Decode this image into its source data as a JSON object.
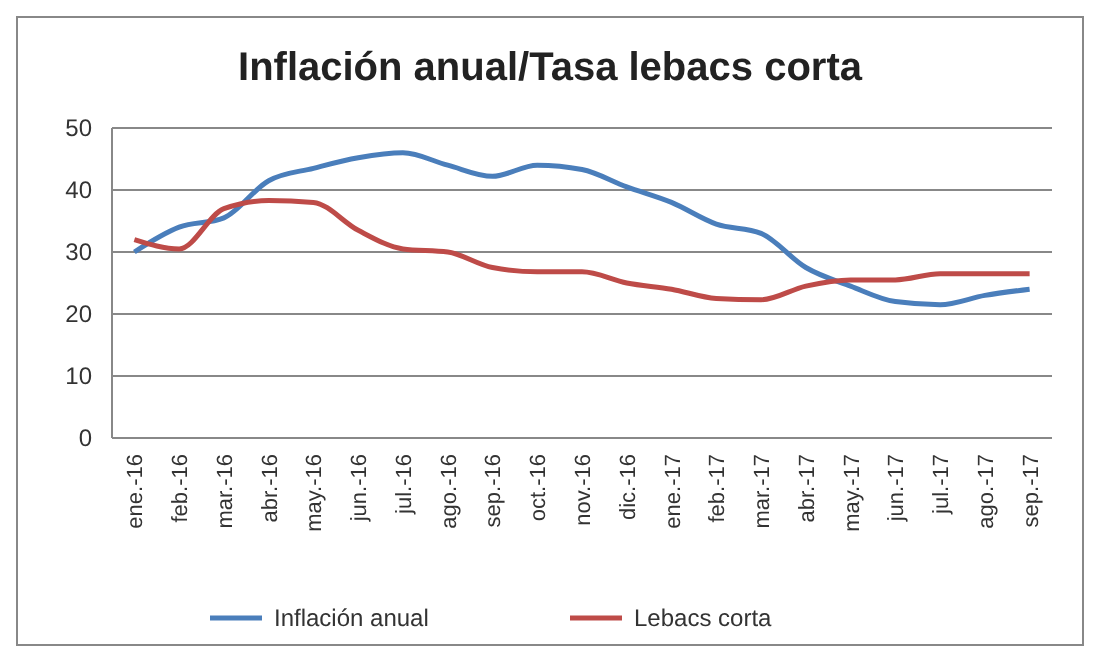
{
  "chart_data": {
    "type": "line",
    "title": "Inflación anual/Tasa lebacs corta",
    "categories": [
      "ene.-16",
      "feb.-16",
      "mar.-16",
      "abr.-16",
      "may.-16",
      "jun.-16",
      "jul.-16",
      "ago.-16",
      "sep.-16",
      "oct.-16",
      "nov.-16",
      "dic.-16",
      "ene.-17",
      "feb.-17",
      "mar.-17",
      "abr.-17",
      "may.-17",
      "jun.-17",
      "jul.-17",
      "ago.-17",
      "sep.-17"
    ],
    "series": [
      {
        "name": "Inflación anual",
        "color": "#4a7ebb",
        "values": [
          30,
          34,
          35.5,
          41.5,
          43.5,
          45.2,
          46,
          44,
          42.2,
          44,
          43.3,
          40.5,
          38,
          34.5,
          33,
          27.5,
          24.5,
          22,
          21.5,
          23,
          24
        ]
      },
      {
        "name": "Lebacs corta",
        "color": "#be4b48",
        "values": [
          32,
          30.5,
          37,
          38.3,
          38,
          33.5,
          30.5,
          30,
          27.5,
          26.8,
          26.8,
          25,
          24,
          22.5,
          22.3,
          24.5,
          25.5,
          25.5,
          26.5,
          26.5,
          26.5
        ]
      }
    ],
    "ylim": [
      0,
      50
    ],
    "yticks": [
      0,
      10,
      20,
      30,
      40,
      50
    ],
    "grid": "y",
    "legend": "bottom",
    "marker": "none",
    "line_style": "solid"
  }
}
